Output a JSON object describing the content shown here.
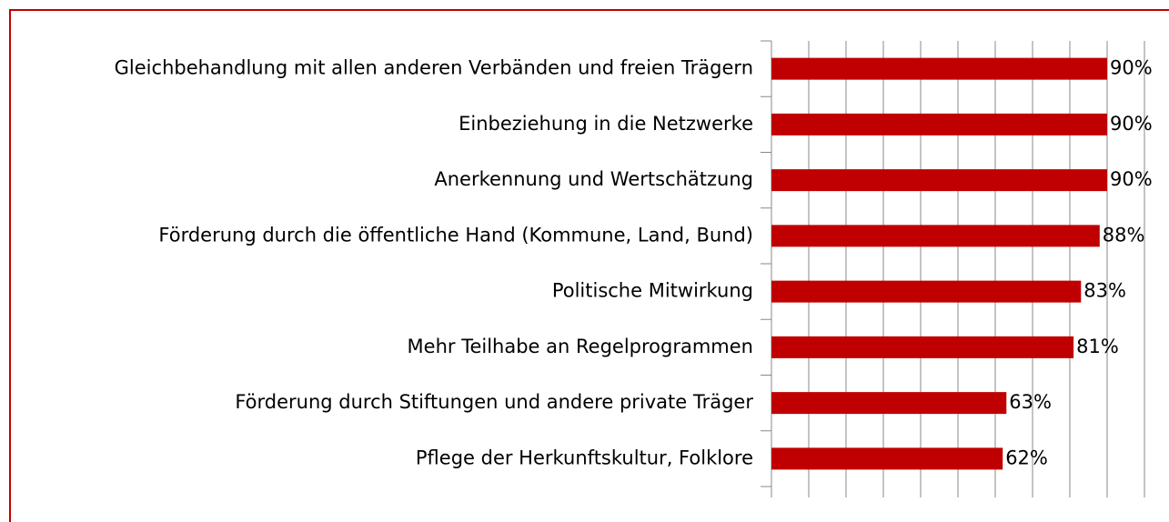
{
  "chart_data": {
    "type": "bar",
    "orientation": "horizontal",
    "categories": [
      "Gleichbehandlung mit allen anderen Verbänden und freien Trägern",
      "Einbeziehung in die Netzwerke",
      "Anerkennung und Wertschätzung",
      "Förderung durch die öffentliche Hand (Kommune, Land, Bund)",
      "Politische Mitwirkung",
      "Mehr Teilhabe an Regelprogrammen",
      "Förderung durch Stiftungen und andere private Träger",
      "Pflege der Herkunftskultur, Folklore"
    ],
    "values": [
      90,
      90,
      90,
      88,
      83,
      81,
      63,
      62
    ],
    "value_labels": [
      "90%",
      "90%",
      "90%",
      "88%",
      "83%",
      "81%",
      "63%",
      "62%"
    ],
    "color": "#c00000",
    "xlim": [
      0,
      100
    ],
    "xticks": [
      0,
      10,
      20,
      30,
      40,
      50,
      60,
      70,
      80,
      90,
      100
    ],
    "grid": true
  }
}
